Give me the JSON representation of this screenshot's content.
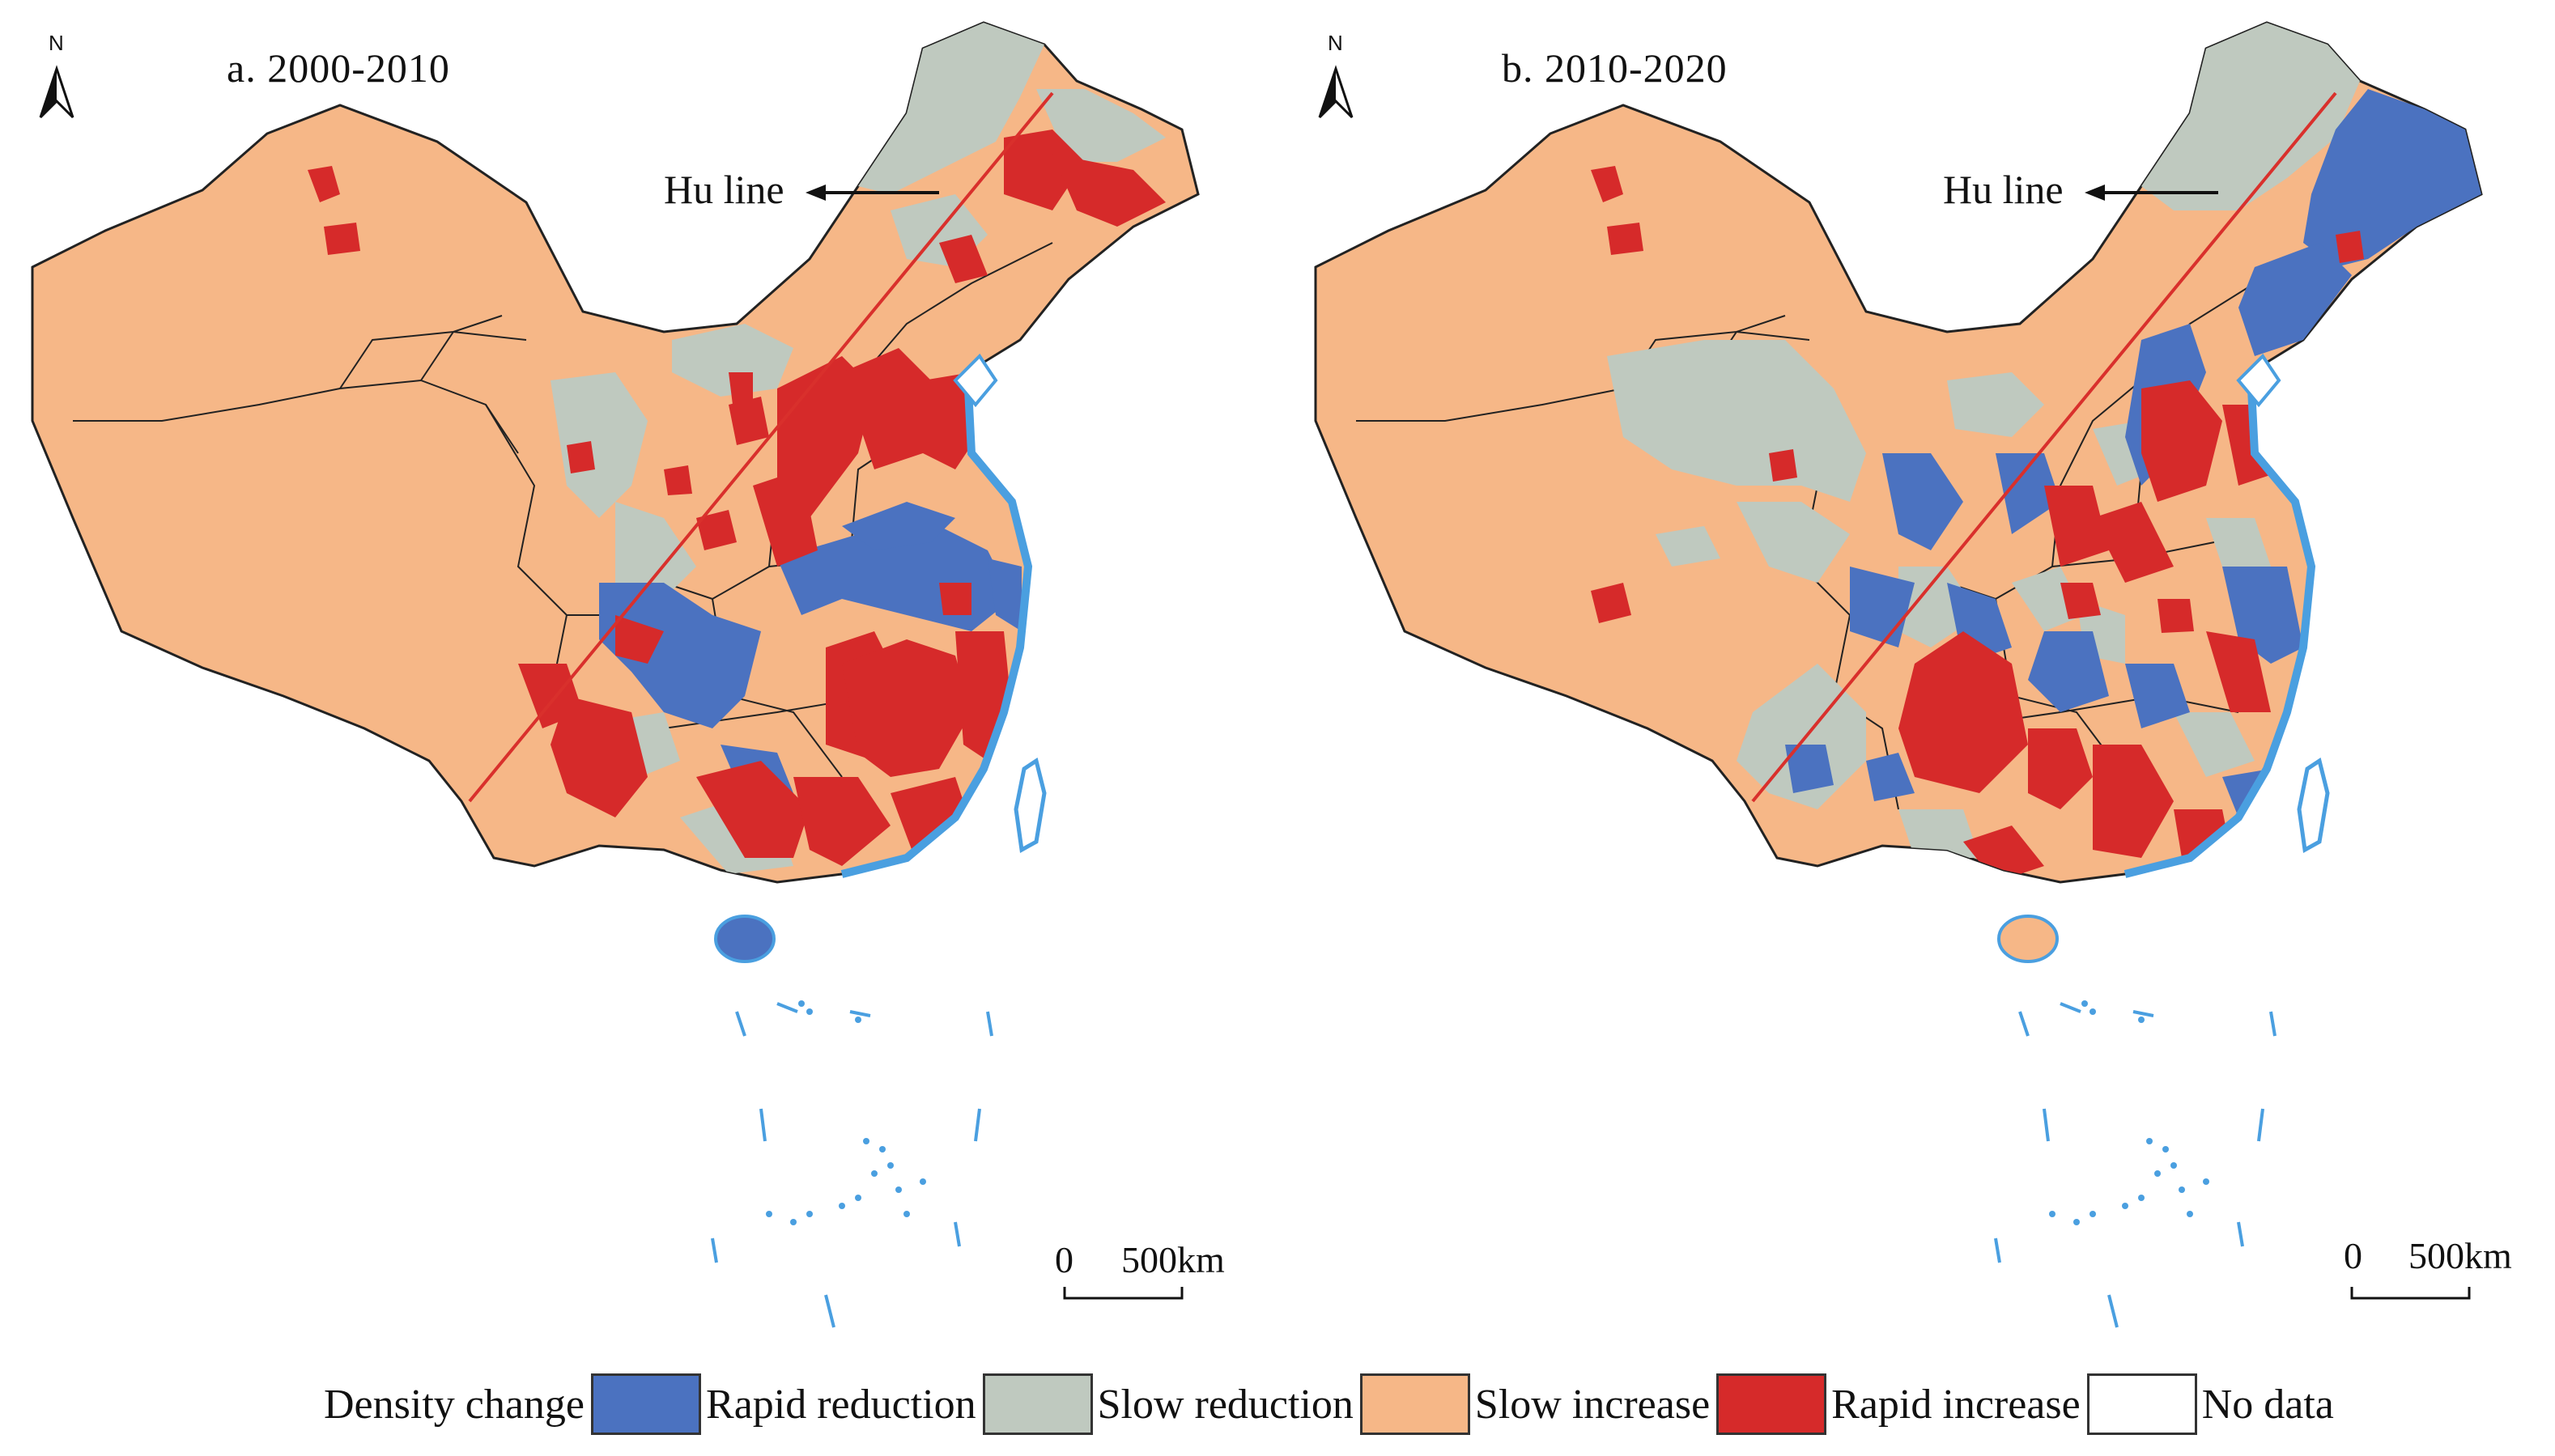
{
  "panels": [
    {
      "title": "a. 2000-2010",
      "hu_label": "Hu line",
      "north": "N",
      "scale": {
        "zero": "0",
        "distance": "500km"
      }
    },
    {
      "title": "b. 2010-2020",
      "hu_label": "Hu line",
      "north": "N",
      "scale": {
        "zero": "0",
        "distance": "500km"
      }
    }
  ],
  "legend": {
    "title": "Density change",
    "items": [
      {
        "label": "Rapid reduction",
        "color": "#4b72c0"
      },
      {
        "label": "Slow reduction",
        "color": "#bfc9bf"
      },
      {
        "label": "Slow increase",
        "color": "#f6b787"
      },
      {
        "label": "Rapid increase",
        "color": "#d62a2a"
      },
      {
        "label": "No data",
        "color": "#ffffff"
      }
    ]
  },
  "colors": {
    "rapid_reduction": "#4b72c0",
    "slow_reduction": "#bfc9bf",
    "slow_increase": "#f6b787",
    "rapid_increase": "#d62a2a",
    "hu_line": "#d9302c",
    "coast": "#4a9fe0"
  }
}
